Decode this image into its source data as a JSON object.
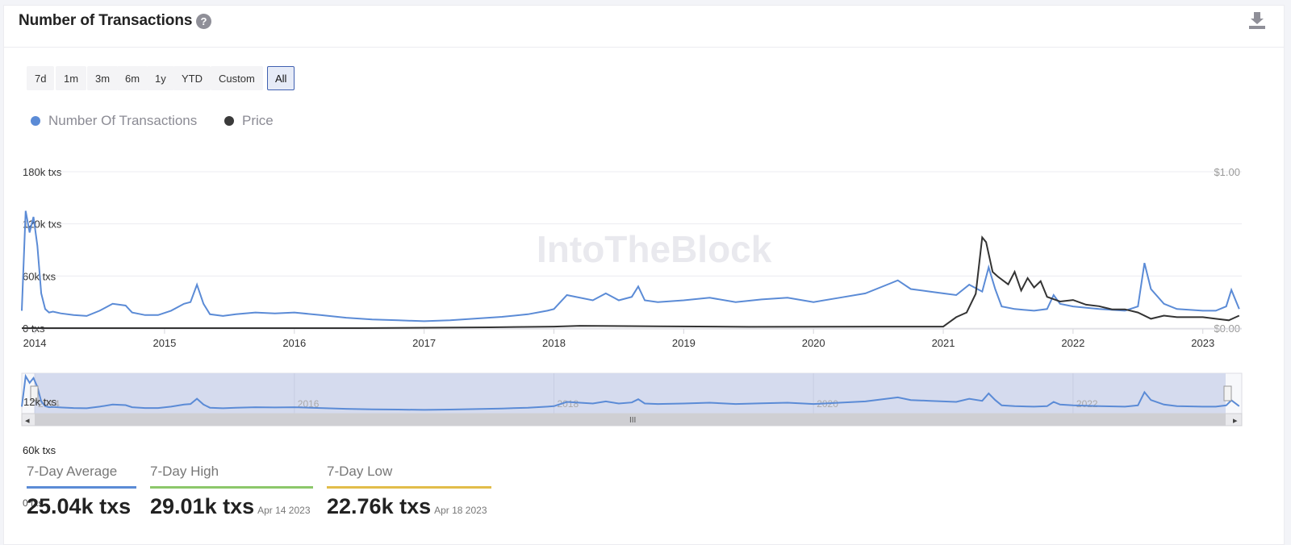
{
  "header": {
    "title": "Number of Transactions",
    "help_glyph": "?",
    "download_icon": "download-icon"
  },
  "ranges": [
    {
      "label": "7d",
      "active": false
    },
    {
      "label": "1m",
      "active": false
    },
    {
      "label": "3m",
      "active": false
    },
    {
      "label": "6m",
      "active": false
    },
    {
      "label": "1y",
      "active": false
    },
    {
      "label": "YTD",
      "active": false
    },
    {
      "label": "Custom",
      "active": false
    },
    {
      "label": "All",
      "active": true
    }
  ],
  "legend": [
    {
      "label": "Number Of Transactions",
      "color": "#5b8bd6"
    },
    {
      "label": "Price",
      "color": "#3a3a3a"
    }
  ],
  "watermark": "IntoTheBlock",
  "chart_data": {
    "type": "line",
    "title": "Number of Transactions",
    "x_range": [
      "2013-11-25",
      "2023-04-21"
    ],
    "x_ticks": [
      "2014",
      "2015",
      "2016",
      "2017",
      "2018",
      "2019",
      "2020",
      "2021",
      "2022",
      "2023"
    ],
    "y_left": {
      "ticks": [
        "180k txs",
        "120k txs",
        "60k txs",
        "0 txs"
      ],
      "range": [
        0,
        180000
      ]
    },
    "y_right": {
      "ticks": [
        "$1.00",
        "$0.00"
      ],
      "range": [
        0,
        1
      ]
    },
    "series": [
      {
        "name": "Number Of Transactions",
        "axis": "left",
        "x": [
          2013.9,
          2013.93,
          2013.96,
          2013.99,
          2014.02,
          2014.05,
          2014.08,
          2014.11,
          2014.14,
          2014.2,
          2014.3,
          2014.4,
          2014.5,
          2014.6,
          2014.7,
          2014.75,
          2014.85,
          2014.95,
          2015.05,
          2015.15,
          2015.2,
          2015.25,
          2015.3,
          2015.35,
          2015.45,
          2015.55,
          2015.7,
          2015.85,
          2016.0,
          2016.2,
          2016.4,
          2016.6,
          2016.8,
          2017.0,
          2017.2,
          2017.4,
          2017.6,
          2017.8,
          2017.95,
          2018.0,
          2018.1,
          2018.3,
          2018.4,
          2018.5,
          2018.6,
          2018.65,
          2018.7,
          2018.8,
          2019.0,
          2019.2,
          2019.4,
          2019.6,
          2019.8,
          2020.0,
          2020.2,
          2020.4,
          2020.6,
          2020.65,
          2020.75,
          2020.9,
          2021.0,
          2021.1,
          2021.2,
          2021.3,
          2021.35,
          2021.4,
          2021.45,
          2021.55,
          2021.7,
          2021.8,
          2021.85,
          2021.9,
          2022.0,
          2022.2,
          2022.4,
          2022.5,
          2022.55,
          2022.6,
          2022.7,
          2022.8,
          2023.0,
          2023.1,
          2023.18,
          2023.22,
          2023.28
        ],
        "values": [
          20000,
          135000,
          110000,
          128000,
          95000,
          40000,
          22000,
          18000,
          19000,
          17000,
          15000,
          14000,
          20000,
          28000,
          26000,
          18000,
          15000,
          15000,
          20000,
          28000,
          30000,
          50000,
          28000,
          16000,
          14000,
          16000,
          18000,
          17000,
          18000,
          15000,
          12000,
          10000,
          9000,
          8000,
          9000,
          11000,
          13000,
          16000,
          20000,
          22000,
          38000,
          32000,
          40000,
          32000,
          36000,
          48000,
          32000,
          30000,
          32000,
          35000,
          30000,
          33000,
          35000,
          30000,
          35000,
          40000,
          52000,
          55000,
          45000,
          42000,
          40000,
          38000,
          50000,
          42000,
          70000,
          45000,
          25000,
          22000,
          20000,
          22000,
          38000,
          28000,
          25000,
          22000,
          20000,
          25000,
          75000,
          45000,
          28000,
          22000,
          20000,
          20000,
          25000,
          44000,
          22000
        ]
      },
      {
        "name": "Price",
        "axis": "right",
        "x": [
          2013.9,
          2014.5,
          2015.5,
          2016.5,
          2017.5,
          2018.0,
          2018.2,
          2018.8,
          2019.5,
          2020.5,
          2021.0,
          2021.05,
          2021.1,
          2021.18,
          2021.25,
          2021.3,
          2021.33,
          2021.38,
          2021.42,
          2021.5,
          2021.55,
          2021.6,
          2021.65,
          2021.7,
          2021.75,
          2021.8,
          2021.9,
          2022.0,
          2022.1,
          2022.2,
          2022.3,
          2022.4,
          2022.5,
          2022.6,
          2022.7,
          2022.8,
          2022.9,
          2023.0,
          2023.1,
          2023.2,
          2023.28
        ],
        "values": [
          0.0,
          0.0,
          0.0,
          0.0,
          0.005,
          0.01,
          0.015,
          0.012,
          0.008,
          0.01,
          0.01,
          0.04,
          0.07,
          0.1,
          0.22,
          0.58,
          0.55,
          0.36,
          0.33,
          0.28,
          0.36,
          0.24,
          0.32,
          0.26,
          0.3,
          0.2,
          0.17,
          0.18,
          0.15,
          0.14,
          0.12,
          0.12,
          0.1,
          0.06,
          0.08,
          0.07,
          0.07,
          0.07,
          0.06,
          0.05,
          0.08
        ]
      }
    ],
    "grid": true,
    "legend_position": "top-left"
  },
  "navigator": {
    "labels": [
      "2014",
      "2016",
      "2018",
      "2020",
      "2022"
    ],
    "y_overlay": "12k txs",
    "scroll_left": "◂",
    "scroll_right": "▸",
    "scroll_grip": "III"
  },
  "stats": [
    {
      "label": "7-Day Average",
      "value": "25.04k txs",
      "date": "",
      "color": "#5b8bd6"
    },
    {
      "label": "7-Day High",
      "value": "29.01k txs",
      "date": "Apr 14 2023",
      "color": "#8cc76a"
    },
    {
      "label": "7-Day Low",
      "value": "22.76k txs",
      "date": "Apr 18 2023",
      "color": "#e2bd4a"
    }
  ],
  "overlay_labels": {
    "label_60k": "60k txs",
    "label_0": "0 txs"
  }
}
